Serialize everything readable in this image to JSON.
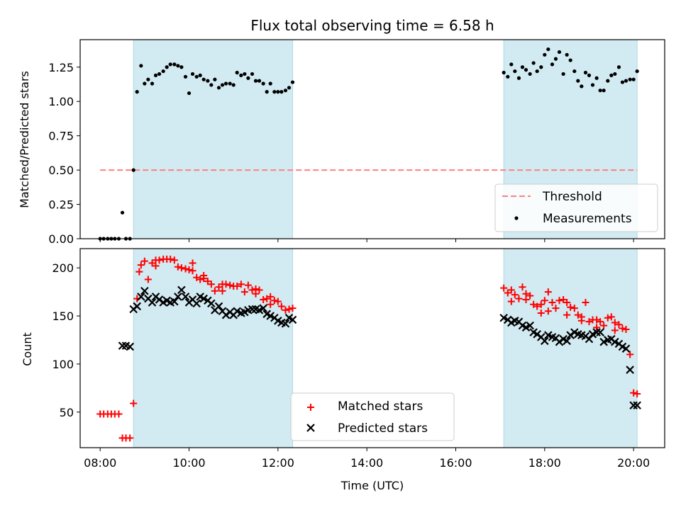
{
  "title": "Flux total observing time = 6.58 h",
  "colors": {
    "band": "#add8e6",
    "threshold": "#ff7f7f",
    "measurement": "#000000",
    "matched": "#ff0000",
    "predicted": "#000000"
  },
  "chart_data": [
    {
      "type": "scatter",
      "ylabel": "Matched/Predicted stars",
      "xlabel": "",
      "xlim": [
        7.55,
        20.7
      ],
      "ylim": [
        0,
        1.45
      ],
      "yticks": [
        0.0,
        0.25,
        0.5,
        0.75,
        1.0,
        1.25
      ],
      "ytick_labels": [
        "0.00",
        "0.25",
        "0.50",
        "0.75",
        "1.00",
        "1.25"
      ],
      "xticks": [
        8,
        10,
        12,
        14,
        16,
        18,
        20
      ],
      "shaded_spans": [
        [
          8.75,
          12.33
        ],
        [
          17.08,
          20.08
        ]
      ],
      "threshold": {
        "name": "Threshold",
        "y": 0.5,
        "x": [
          8.0,
          20.08
        ],
        "style": "dashed"
      },
      "series": [
        {
          "name": "Measurements",
          "marker": "dot",
          "x": [
            8.0,
            8.08,
            8.17,
            8.25,
            8.33,
            8.42,
            8.5,
            8.58,
            8.67,
            8.75,
            8.83,
            8.92,
            9.0,
            9.08,
            9.17,
            9.25,
            9.33,
            9.42,
            9.5,
            9.58,
            9.67,
            9.75,
            9.83,
            9.92,
            10.0,
            10.08,
            10.17,
            10.25,
            10.33,
            10.42,
            10.5,
            10.58,
            10.67,
            10.75,
            10.83,
            10.92,
            11.0,
            11.08,
            11.17,
            11.25,
            11.33,
            11.42,
            11.5,
            11.58,
            11.67,
            11.75,
            11.83,
            11.92,
            12.0,
            12.08,
            12.17,
            12.25,
            12.33,
            17.08,
            17.17,
            17.25,
            17.33,
            17.42,
            17.5,
            17.58,
            17.67,
            17.75,
            17.83,
            17.92,
            18.0,
            18.08,
            18.17,
            18.25,
            18.33,
            18.42,
            18.5,
            18.58,
            18.67,
            18.75,
            18.83,
            18.92,
            19.0,
            19.08,
            19.17,
            19.25,
            19.33,
            19.42,
            19.5,
            19.58,
            19.67,
            19.75,
            19.83,
            19.92,
            20.0,
            20.08
          ],
          "y": [
            0.0,
            0.0,
            0.0,
            0.0,
            0.0,
            0.0,
            0.19,
            0.0,
            0.0,
            0.5,
            1.07,
            1.26,
            1.13,
            1.16,
            1.13,
            1.19,
            1.2,
            1.22,
            1.25,
            1.27,
            1.27,
            1.26,
            1.25,
            1.18,
            1.06,
            1.2,
            1.18,
            1.19,
            1.16,
            1.15,
            1.12,
            1.16,
            1.1,
            1.12,
            1.13,
            1.13,
            1.12,
            1.21,
            1.19,
            1.2,
            1.17,
            1.2,
            1.15,
            1.15,
            1.13,
            1.07,
            1.13,
            1.07,
            1.07,
            1.07,
            1.08,
            1.1,
            1.14,
            1.21,
            1.18,
            1.27,
            1.22,
            1.17,
            1.25,
            1.23,
            1.2,
            1.28,
            1.22,
            1.25,
            1.34,
            1.38,
            1.27,
            1.31,
            1.36,
            1.2,
            1.34,
            1.3,
            1.22,
            1.15,
            1.11,
            1.21,
            1.19,
            1.12,
            1.17,
            1.08,
            1.08,
            1.15,
            1.19,
            1.2,
            1.25,
            1.14,
            1.15,
            1.16,
            1.16,
            1.22
          ]
        }
      ],
      "legend": {
        "placement": "lower-right",
        "entries": [
          "Threshold",
          "Measurements"
        ]
      }
    },
    {
      "type": "scatter",
      "ylabel": "Count",
      "xlabel": "Time (UTC)",
      "xlim": [
        7.55,
        20.7
      ],
      "ylim": [
        13,
        220
      ],
      "yticks": [
        50,
        100,
        150,
        200
      ],
      "ytick_labels": [
        "50",
        "100",
        "150",
        "200"
      ],
      "xticks": [
        8,
        10,
        12,
        14,
        16,
        18,
        20
      ],
      "xtick_labels": [
        "08:00",
        "10:00",
        "12:00",
        "14:00",
        "16:00",
        "18:00",
        "20:00"
      ],
      "shaded_spans": [
        [
          8.75,
          12.33
        ],
        [
          17.08,
          20.08
        ]
      ],
      "series": [
        {
          "name": "Matched stars",
          "marker": "plus",
          "x": [
            8.0,
            8.08,
            8.17,
            8.25,
            8.33,
            8.42,
            8.5,
            8.58,
            8.67,
            8.75,
            8.83,
            8.92,
            9.0,
            9.08,
            9.17,
            9.25,
            9.33,
            9.42,
            9.5,
            9.58,
            9.67,
            9.75,
            9.83,
            9.92,
            10.0,
            10.08,
            10.17,
            10.25,
            10.33,
            10.42,
            10.5,
            10.58,
            10.67,
            10.75,
            10.83,
            10.92,
            11.0,
            11.08,
            11.17,
            11.25,
            11.33,
            11.42,
            11.5,
            11.58,
            11.67,
            11.75,
            11.83,
            11.92,
            12.0,
            12.08,
            12.17,
            12.25,
            12.33,
            8.88,
            9.25,
            10.08,
            10.33,
            10.75,
            11.5,
            11.83,
            17.08,
            17.17,
            17.25,
            17.33,
            17.42,
            17.5,
            17.58,
            17.67,
            17.75,
            17.83,
            17.92,
            18.0,
            18.08,
            18.17,
            18.25,
            18.33,
            18.42,
            18.5,
            18.58,
            18.67,
            18.75,
            18.83,
            18.92,
            19.0,
            19.08,
            19.17,
            19.25,
            19.33,
            19.42,
            19.5,
            19.58,
            19.67,
            19.75,
            19.83,
            19.92,
            20.0,
            20.08,
            17.25,
            17.58,
            17.92,
            18.08,
            18.5,
            18.83,
            19.17,
            19.58
          ],
          "y": [
            48,
            48,
            48,
            48,
            48,
            48,
            23,
            23,
            23,
            59,
            168,
            203,
            207,
            188,
            205,
            208,
            208,
            209,
            209,
            209,
            208,
            201,
            200,
            199,
            198,
            197,
            190,
            188,
            189,
            186,
            183,
            176,
            180,
            176,
            183,
            182,
            181,
            181,
            183,
            175,
            182,
            177,
            173,
            177,
            167,
            168,
            162,
            166,
            165,
            160,
            156,
            157,
            158,
            196,
            202,
            205,
            192,
            183,
            178,
            170,
            179,
            174,
            177,
            172,
            168,
            180,
            167,
            171,
            162,
            160,
            162,
            166,
            175,
            164,
            158,
            166,
            167,
            164,
            159,
            158,
            151,
            149,
            164,
            144,
            146,
            146,
            144,
            140,
            148,
            149,
            143,
            141,
            137,
            136,
            110,
            70,
            69,
            165,
            173,
            153,
            155,
            151,
            145,
            138,
            135
          ]
        },
        {
          "name": "Predicted stars",
          "marker": "x",
          "x": [
            8.5,
            8.58,
            8.67,
            8.75,
            8.83,
            8.92,
            9.0,
            9.08,
            9.17,
            9.25,
            9.33,
            9.42,
            9.5,
            9.58,
            9.67,
            9.75,
            9.83,
            9.92,
            10.0,
            10.08,
            10.17,
            10.25,
            10.33,
            10.42,
            10.5,
            10.58,
            10.67,
            10.75,
            10.83,
            10.92,
            11.0,
            11.08,
            11.17,
            11.25,
            11.33,
            11.42,
            11.5,
            11.58,
            11.67,
            11.75,
            11.83,
            11.92,
            12.0,
            12.08,
            12.17,
            12.25,
            12.33,
            17.08,
            17.17,
            17.25,
            17.33,
            17.42,
            17.5,
            17.58,
            17.67,
            17.75,
            17.83,
            17.92,
            18.0,
            18.08,
            18.17,
            18.25,
            18.33,
            18.42,
            18.5,
            18.58,
            18.67,
            18.75,
            18.83,
            18.92,
            19.0,
            19.08,
            19.17,
            19.25,
            19.33,
            19.42,
            19.5,
            19.58,
            19.67,
            19.75,
            19.83,
            19.92,
            20.0,
            20.08
          ],
          "y": [
            119,
            119,
            118,
            157,
            160,
            170,
            176,
            168,
            164,
            170,
            167,
            164,
            166,
            164,
            165,
            170,
            177,
            170,
            164,
            167,
            163,
            170,
            168,
            166,
            163,
            156,
            160,
            155,
            151,
            154,
            151,
            155,
            153,
            154,
            156,
            157,
            157,
            156,
            158,
            152,
            150,
            148,
            145,
            143,
            142,
            148,
            146,
            148,
            146,
            143,
            145,
            144,
            140,
            138,
            140,
            133,
            131,
            128,
            124,
            130,
            128,
            127,
            123,
            126,
            124,
            130,
            133,
            131,
            130,
            129,
            126,
            131,
            133,
            133,
            123,
            125,
            126,
            123,
            121,
            118,
            116,
            94,
            57,
            57
          ]
        }
      ],
      "legend": {
        "placement": "lower-center",
        "entries": [
          "Matched stars",
          "Predicted stars"
        ]
      }
    }
  ]
}
